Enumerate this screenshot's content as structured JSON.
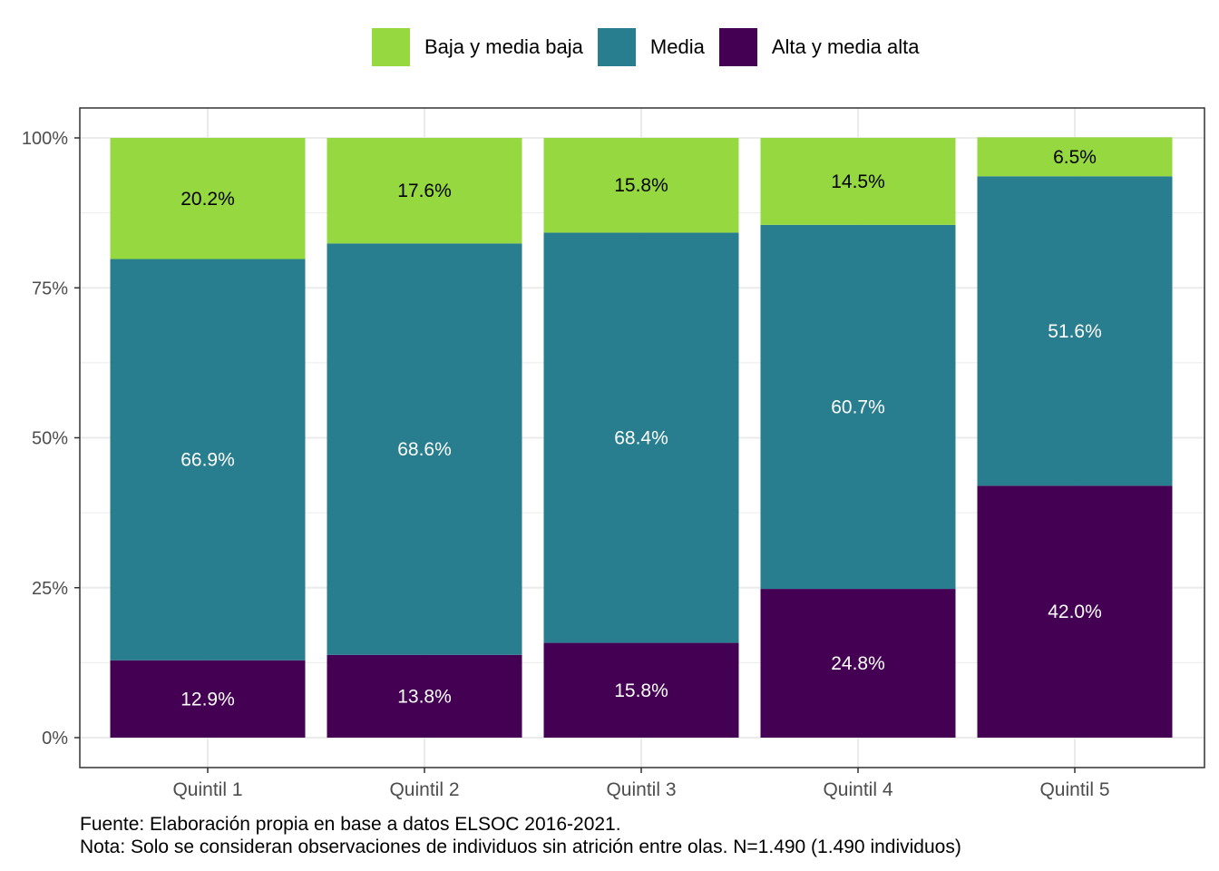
{
  "chart_data": {
    "type": "bar",
    "stacked": true,
    "categories": [
      "Quintil 1",
      "Quintil 2",
      "Quintil 3",
      "Quintil 4",
      "Quintil 5"
    ],
    "series": [
      {
        "name": "Alta y media alta",
        "color": "#440154",
        "values": [
          12.9,
          13.8,
          15.8,
          24.8,
          42.0
        ],
        "labels": [
          "12.9%",
          "13.8%",
          "15.8%",
          "24.8%",
          "42.0%"
        ],
        "label_color": "#ffffff"
      },
      {
        "name": "Media",
        "color": "#287D8E",
        "values": [
          66.9,
          68.6,
          68.4,
          60.7,
          51.6
        ],
        "labels": [
          "66.9%",
          "68.6%",
          "68.4%",
          "60.7%",
          "51.6%"
        ],
        "label_color": "#ffffff"
      },
      {
        "name": "Baja y media baja",
        "color": "#95D840",
        "values": [
          20.2,
          17.6,
          15.8,
          14.5,
          6.5
        ],
        "labels": [
          "20.2%",
          "17.6%",
          "15.8%",
          "14.5%",
          "6.5%"
        ],
        "label_color": "#000000"
      }
    ],
    "legend_order": [
      "Baja y media baja",
      "Media",
      "Alta y media alta"
    ],
    "legend_position": "top",
    "y_ticks": [
      "0%",
      "25%",
      "50%",
      "75%",
      "100%"
    ],
    "ylim": [
      0,
      100
    ],
    "grid": true,
    "title": "",
    "xlabel": "",
    "ylabel": ""
  },
  "caption": {
    "line1": "Fuente: Elaboración propia en base a datos ELSOC 2016-2021.",
    "line2": "Nota: Solo se consideran observaciones de individuos sin atrición entre olas. N=1.490 (1.490 individuos)"
  }
}
